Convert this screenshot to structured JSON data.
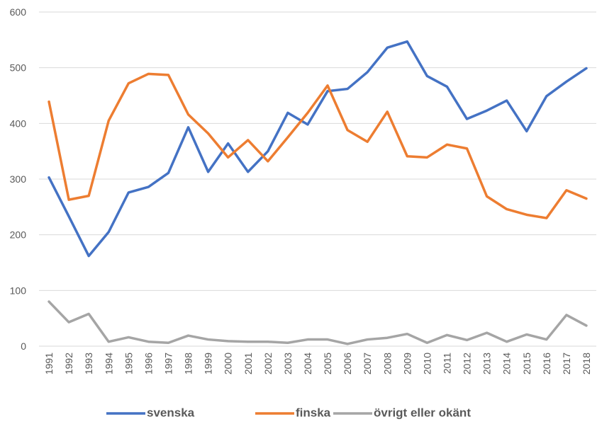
{
  "chart_data": {
    "type": "line",
    "categories": [
      "1991",
      "1992",
      "1993",
      "1994",
      "1995",
      "1996",
      "1997",
      "1998",
      "1999",
      "2000",
      "2001",
      "2002",
      "2003",
      "2004",
      "2005",
      "2006",
      "2007",
      "2008",
      "2009",
      "2010",
      "2011",
      "2012",
      "2013",
      "2014",
      "2015",
      "2016",
      "2017",
      "2018"
    ],
    "series": [
      {
        "name": "svenska",
        "color": "#4472c4",
        "values": [
          303,
          233,
          162,
          205,
          276,
          286,
          311,
          393,
          313,
          364,
          313,
          350,
          419,
          398,
          458,
          462,
          492,
          536,
          547,
          485,
          466,
          408,
          423,
          441,
          386,
          449,
          475,
          499
        ]
      },
      {
        "name": "finska",
        "color": "#ed7d31",
        "values": [
          439,
          263,
          270,
          405,
          472,
          489,
          487,
          416,
          382,
          339,
          370,
          332,
          375,
          419,
          468,
          388,
          367,
          421,
          341,
          339,
          362,
          355,
          269,
          246,
          236,
          230,
          280,
          265
        ]
      },
      {
        "name": "övrigt eller okänt",
        "color": "#a5a5a5",
        "values": [
          80,
          43,
          58,
          8,
          16,
          8,
          6,
          19,
          12,
          9,
          8,
          8,
          6,
          12,
          12,
          4,
          12,
          15,
          22,
          6,
          20,
          11,
          24,
          8,
          21,
          12,
          56,
          37
        ]
      }
    ],
    "ylim": [
      0,
      600
    ],
    "yticks": [
      0,
      100,
      200,
      300,
      400,
      500,
      600
    ],
    "grid": true,
    "legend": "bottom"
  }
}
